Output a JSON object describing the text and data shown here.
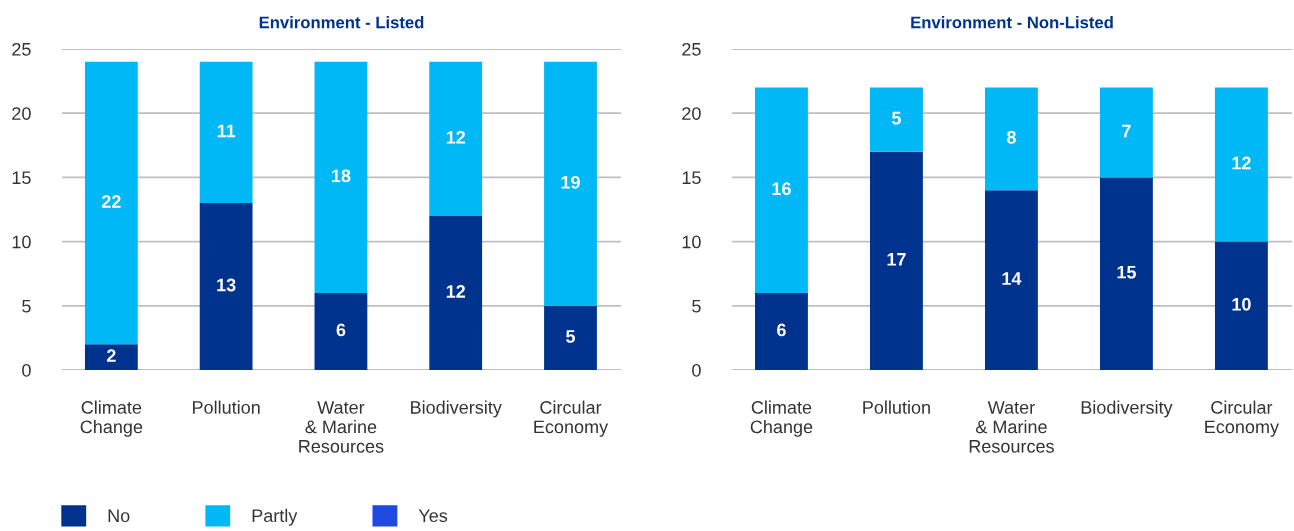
{
  "chart_data": [
    {
      "type": "bar",
      "title": "Environment - Listed",
      "stacked": true,
      "data_labels": true,
      "grid": "y",
      "legend": "bottom",
      "categories": [
        "Climate\nChange",
        "Pollution",
        "Water\n& Marine\nResources",
        "Biodiversity",
        "Circular\nEconomy"
      ],
      "ylim": [
        0,
        25
      ],
      "yticks": [
        0,
        5,
        10,
        15,
        20,
        25
      ],
      "series": [
        {
          "name": "No",
          "color": "#00338d",
          "values": [
            2,
            13,
            6,
            12,
            5
          ]
        },
        {
          "name": "Partly",
          "color": "#00b8f5",
          "values": [
            22,
            11,
            18,
            12,
            19
          ]
        },
        {
          "name": "Yes",
          "color": "#1e49e2",
          "values": [
            null,
            null,
            null,
            null,
            null
          ]
        }
      ]
    },
    {
      "type": "bar",
      "title": "Environment - Non-Listed",
      "stacked": true,
      "data_labels": true,
      "grid": "y",
      "categories": [
        "Climate\nChange",
        "Pollution",
        "Water\n& Marine\nResources",
        "Biodiversity",
        "Circular\nEconomy"
      ],
      "ylim": [
        0,
        25
      ],
      "yticks": [
        0,
        5,
        10,
        15,
        20,
        25
      ],
      "series": [
        {
          "color": "#00338d",
          "values": [
            6,
            17,
            14,
            15,
            10
          ]
        },
        {
          "color": "#00b8f5",
          "values": [
            16,
            5,
            8,
            7,
            12
          ]
        },
        {
          "color": "#1e49e2",
          "values": [
            null,
            null,
            null,
            null,
            null
          ]
        }
      ]
    }
  ]
}
